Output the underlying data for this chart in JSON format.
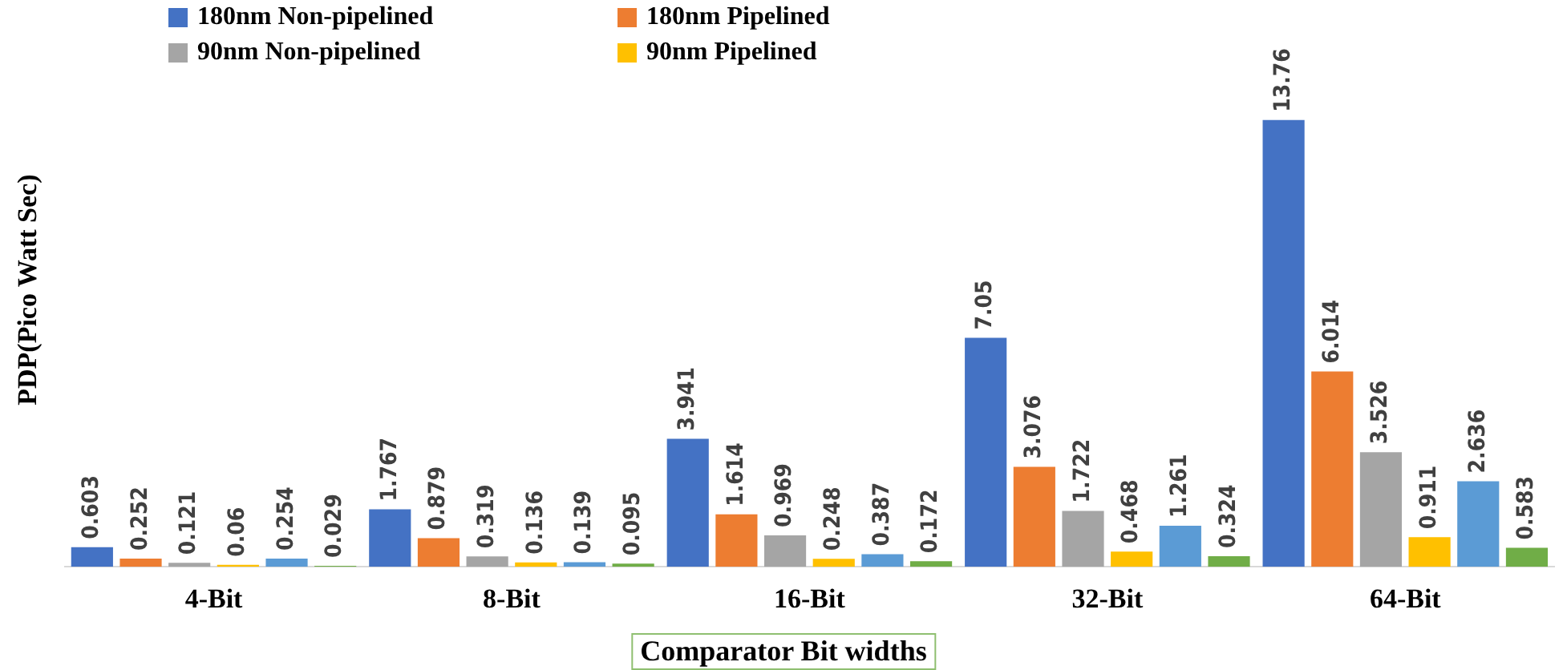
{
  "chart_data": {
    "type": "bar",
    "ylabel": "PDP(Pico Watt Sec)",
    "xlabel": "Comparator Bit widths",
    "categories": [
      "4-Bit",
      "8-Bit",
      "16-Bit",
      "32-Bit",
      "64-Bit"
    ],
    "series": [
      {
        "name": "180nm Non-pipelined",
        "color": "#4472c4",
        "values": [
          0.603,
          1.767,
          3.941,
          7.05,
          13.76
        ]
      },
      {
        "name": "180nm Pipelined",
        "color": "#ed7d31",
        "values": [
          0.252,
          0.879,
          1.614,
          3.076,
          6.014
        ]
      },
      {
        "name": "90nm Non-pipelined",
        "color": "#a5a5a5",
        "values": [
          0.121,
          0.319,
          0.969,
          1.722,
          3.526
        ]
      },
      {
        "name": "90nm Pipelined",
        "color": "#ffc000",
        "values": [
          0.06,
          0.136,
          0.248,
          0.468,
          0.911
        ]
      },
      {
        "color": "#5b9bd5",
        "values": [
          0.254,
          0.139,
          0.387,
          1.261,
          2.636
        ]
      },
      {
        "color": "#70ad47",
        "values": [
          0.029,
          0.095,
          0.172,
          0.324,
          0.583
        ]
      }
    ],
    "data_labels": true,
    "legend": "top",
    "grid": false
  }
}
